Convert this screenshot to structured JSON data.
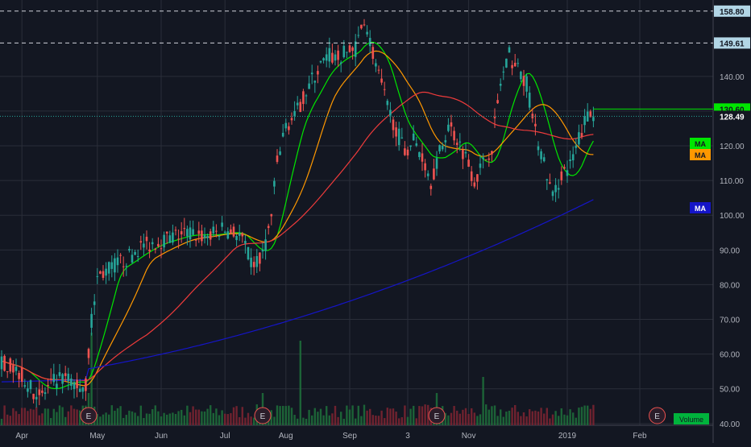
{
  "chart_data": {
    "type": "candlestick",
    "x_labels": [
      "Apr",
      "May",
      "Jun",
      "Jul",
      "Aug",
      "Sep",
      "3",
      "Nov",
      "2019",
      "Feb"
    ],
    "y_ticks": [
      40,
      50,
      60,
      70,
      80,
      90,
      100,
      110,
      120,
      130,
      140
    ],
    "ylim": [
      39.5,
      162
    ],
    "horizontal_levels": [
      {
        "value": 158.8,
        "label": "158.80"
      },
      {
        "value": 149.61,
        "label": "149.61"
      }
    ],
    "last_price": {
      "value": 128.49,
      "label": "128.49",
      "color": "#26a69a"
    },
    "prev_close": {
      "value": 130.6,
      "label": "130.60",
      "color": "#00e600"
    },
    "moving_averages": [
      {
        "label": "MA",
        "color": "#00e600",
        "end_value": 122
      },
      {
        "label": "MA",
        "color": "#ff9800",
        "end_value": 120
      },
      {
        "label": "MA",
        "color": "#ef3b3b",
        "end_value": 124
      },
      {
        "label": "MA",
        "color": "#1515c8",
        "end_value": 104.5
      }
    ],
    "earnings_markers": [
      {
        "label": "E",
        "date_index": 30
      },
      {
        "label": "E",
        "date_index": 90
      },
      {
        "label": "E",
        "date_index": 150
      },
      {
        "label": "E",
        "date_index": 226
      }
    ],
    "volume_label": "Volume",
    "price_path": [
      [
        0,
        58
      ],
      [
        6,
        55
      ],
      [
        10,
        50
      ],
      [
        14,
        48
      ],
      [
        18,
        52
      ],
      [
        22,
        53
      ],
      [
        26,
        51
      ],
      [
        29,
        51
      ],
      [
        31,
        70
      ],
      [
        33,
        82
      ],
      [
        36,
        84
      ],
      [
        40,
        86
      ],
      [
        44,
        88
      ],
      [
        48,
        91
      ],
      [
        52,
        92
      ],
      [
        56,
        93
      ],
      [
        60,
        94
      ],
      [
        64,
        95
      ],
      [
        68,
        94
      ],
      [
        72,
        94
      ],
      [
        76,
        96
      ],
      [
        80,
        95
      ],
      [
        83,
        93
      ],
      [
        86,
        86
      ],
      [
        89,
        87
      ],
      [
        91,
        92
      ],
      [
        93,
        100
      ],
      [
        95,
        115
      ],
      [
        98,
        126
      ],
      [
        101,
        128
      ],
      [
        104,
        134
      ],
      [
        107,
        139
      ],
      [
        110,
        143
      ],
      [
        113,
        146
      ],
      [
        116,
        145
      ],
      [
        119,
        147
      ],
      [
        122,
        148
      ],
      [
        125,
        157
      ],
      [
        127,
        150
      ],
      [
        130,
        140
      ],
      [
        133,
        131
      ],
      [
        136,
        125
      ],
      [
        139,
        118
      ],
      [
        142,
        122
      ],
      [
        145,
        117
      ],
      [
        148,
        110
      ],
      [
        151,
        118
      ],
      [
        154,
        126
      ],
      [
        157,
        122
      ],
      [
        160,
        117
      ],
      [
        163,
        110
      ],
      [
        166,
        115
      ],
      [
        169,
        120
      ],
      [
        172,
        138
      ],
      [
        175,
        146
      ],
      [
        178,
        142
      ],
      [
        181,
        138
      ],
      [
        184,
        124
      ],
      [
        187,
        115
      ],
      [
        190,
        105
      ],
      [
        193,
        112
      ],
      [
        196,
        114
      ],
      [
        199,
        122
      ],
      [
        202,
        129
      ],
      [
        204,
        128.5
      ]
    ],
    "x_label_index": [
      7,
      33,
      55,
      77,
      98,
      120,
      140,
      161,
      195,
      220
    ],
    "last_index": 204,
    "max_index": 238
  }
}
